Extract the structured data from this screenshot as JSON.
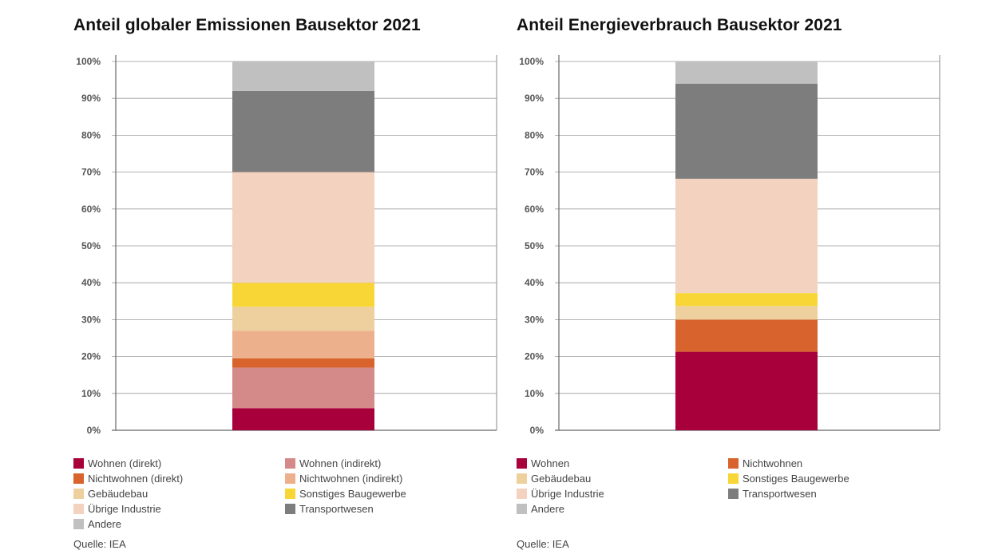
{
  "chart_data": [
    {
      "type": "bar",
      "stacked": true,
      "title": "Anteil globaler Emissionen Bausektor 2021",
      "ylim": [
        0,
        100
      ],
      "yticks": [
        "0%",
        "10%",
        "20%",
        "30%",
        "40%",
        "50%",
        "60%",
        "70%",
        "80%",
        "90%",
        "100%"
      ],
      "grid": true,
      "series": [
        {
          "name": "Wohnen (direkt)",
          "value": 6,
          "color": "#a8003a"
        },
        {
          "name": "Wohnen (indirekt)",
          "value": 11,
          "color": "#d48a89"
        },
        {
          "name": "Nichtwohnen (direkt)",
          "value": 2.5,
          "color": "#d9632c"
        },
        {
          "name": "Nichtwohnen (indirekt)",
          "value": 7.5,
          "color": "#ecb18c"
        },
        {
          "name": "Gebäudebau",
          "value": 6.5,
          "color": "#edd09e"
        },
        {
          "name": "Sonstiges Baugewerbe",
          "value": 6.5,
          "color": "#f7d636"
        },
        {
          "name": "Übrige Industrie",
          "value": 30,
          "color": "#f3d2c0"
        },
        {
          "name": "Transportwesen",
          "value": 22,
          "color": "#7d7d7d"
        },
        {
          "name": "Andere",
          "value": 8,
          "color": "#c0c0c0"
        }
      ],
      "source": "Quelle: IEA"
    },
    {
      "type": "bar",
      "stacked": true,
      "title": "Anteil Energieverbrauch Bausektor 2021",
      "ylim": [
        0,
        100
      ],
      "yticks": [
        "0%",
        "10%",
        "20%",
        "30%",
        "40%",
        "50%",
        "60%",
        "70%",
        "80%",
        "90%",
        "100%"
      ],
      "grid": true,
      "series": [
        {
          "name": "Wohnen",
          "value": 21.3,
          "color": "#a8003a"
        },
        {
          "name": "Nichtwohnen",
          "value": 8.7,
          "color": "#d9632c"
        },
        {
          "name": "Gebäudebau",
          "value": 3.7,
          "color": "#edd09e"
        },
        {
          "name": "Sonstiges Baugewerbe",
          "value": 3.5,
          "color": "#f7d636"
        },
        {
          "name": "Übrige Industrie",
          "value": 31,
          "color": "#f3d2c0"
        },
        {
          "name": "Transportwesen",
          "value": 25.8,
          "color": "#7d7d7d"
        },
        {
          "name": "Andere",
          "value": 6,
          "color": "#c0c0c0"
        }
      ],
      "source": "Quelle: IEA"
    }
  ]
}
